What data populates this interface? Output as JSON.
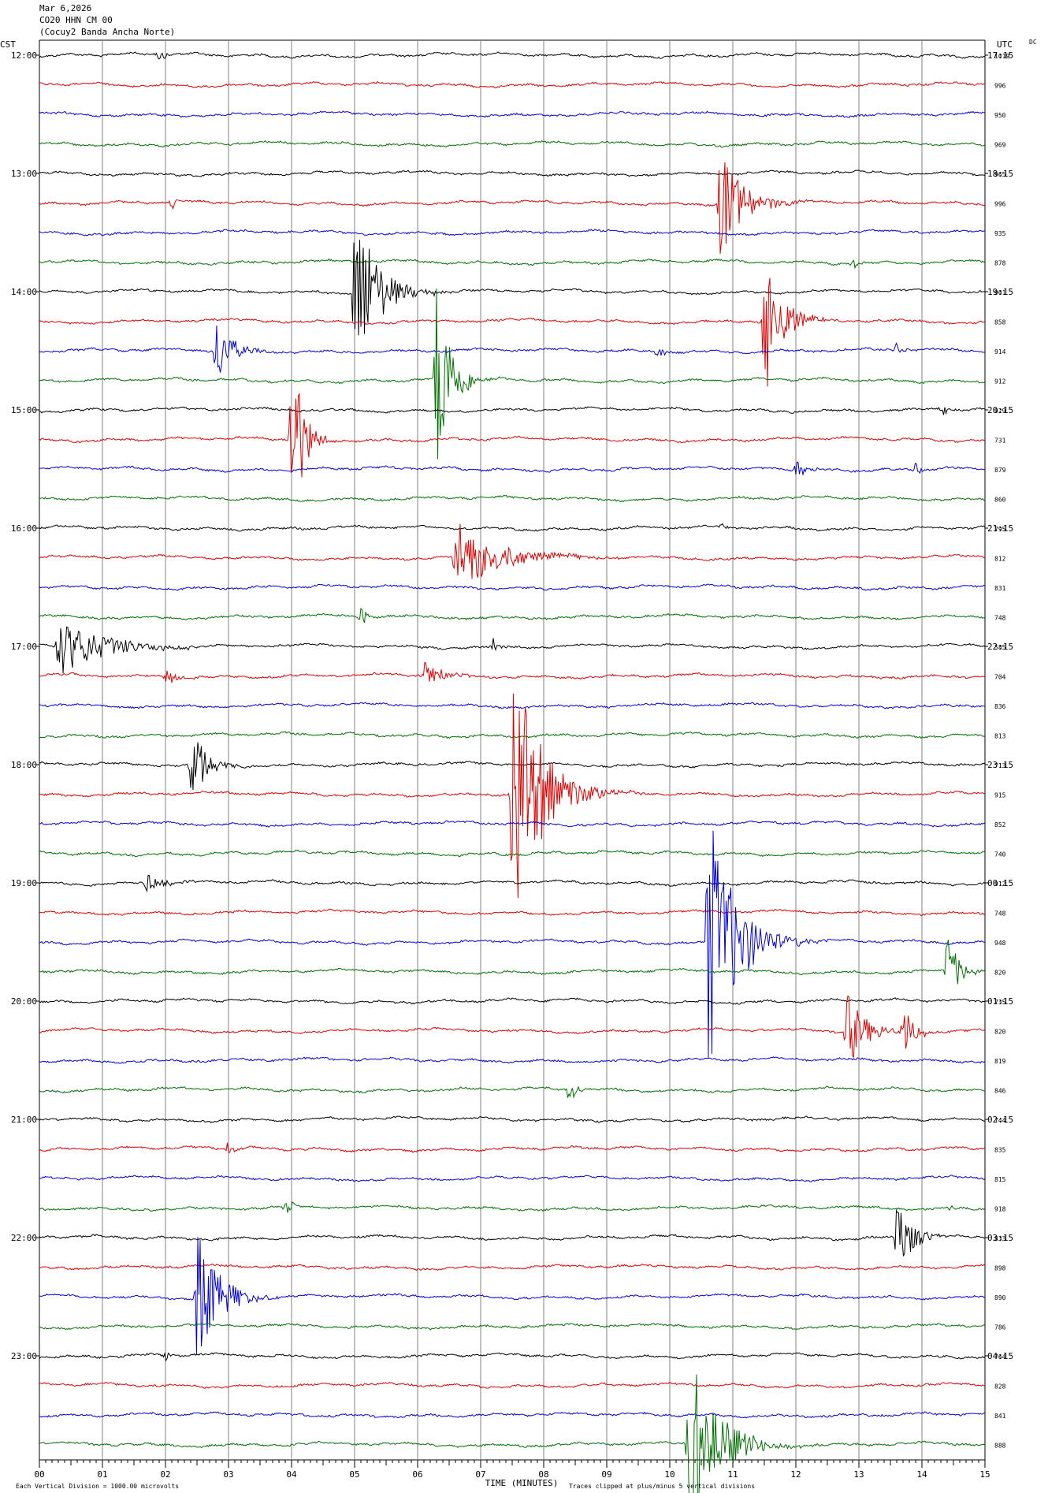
{
  "header": {
    "date": "Mar 6,2026",
    "station": "CO20 HHN CM 00",
    "site": "(Cocuy2 Banda Ancha Norte)"
  },
  "left_axis_label": "CST",
  "right_axis_label": "UTC",
  "dc_label": "DC",
  "footer": {
    "scale_note": "Each Vertical Division = 1000.00 microvolts",
    "xlabel": "TIME (MINUTES)",
    "clip_note": "Traces clipped at plus/minus 5 vertical divisions"
  },
  "colors": {
    "cycle": [
      "#000000",
      "#e00000",
      "#0000e0",
      "#007000"
    ],
    "grid": "#808080"
  },
  "chart_data": {
    "type": "line",
    "x_range": [
      0,
      15
    ],
    "x_ticks": [
      "00",
      "01",
      "02",
      "03",
      "04",
      "05",
      "06",
      "07",
      "08",
      "09",
      "10",
      "11",
      "12",
      "13",
      "14",
      "15"
    ],
    "cst_hour_labels": [
      "12:00",
      "13:00",
      "14:00",
      "15:00",
      "16:00",
      "17:00",
      "18:00",
      "19:00",
      "20:00",
      "21:00",
      "22:00",
      "23:00"
    ],
    "utc_hour_labels": [
      "17:15",
      "18:15",
      "19:15",
      "20:15",
      "21:15",
      "22:15",
      "23:15",
      "00:15",
      "01:15",
      "02:15",
      "03:15",
      "04:15"
    ],
    "dc_offsets": [
      "1019",
      "996",
      "950",
      "969",
      "965",
      "996",
      "935",
      "878",
      "901",
      "858",
      "914",
      "912",
      "929",
      "731",
      "879",
      "860",
      "795",
      "812",
      "831",
      "748",
      "585",
      "704",
      "836",
      "813",
      "713",
      "915",
      "852",
      "740",
      "912",
      "748",
      "948",
      "820",
      "735",
      "820",
      "819",
      "846",
      "744",
      "835",
      "815",
      "918",
      "833",
      "898",
      "890",
      "786",
      "764",
      "828",
      "841",
      "888"
    ],
    "events": [
      {
        "trace": 0,
        "minute": 1.9,
        "amp": 0.25,
        "dur": 0.3
      },
      {
        "trace": 5,
        "minute": 10.8,
        "amp": 2.0,
        "dur": 1.3
      },
      {
        "trace": 5,
        "minute": 2.1,
        "amp": 0.3,
        "dur": 0.2
      },
      {
        "trace": 7,
        "minute": 12.9,
        "amp": 0.3,
        "dur": 0.2
      },
      {
        "trace": 8,
        "minute": 5.0,
        "amp": 3.5,
        "dur": 1.2
      },
      {
        "trace": 9,
        "minute": 11.5,
        "amp": 3.0,
        "dur": 0.9
      },
      {
        "trace": 10,
        "minute": 2.8,
        "amp": 1.4,
        "dur": 0.8
      },
      {
        "trace": 10,
        "minute": 9.8,
        "amp": 0.3,
        "dur": 0.3
      },
      {
        "trace": 10,
        "minute": 13.6,
        "amp": 0.3,
        "dur": 0.3
      },
      {
        "trace": 11,
        "minute": 6.3,
        "amp": 4.0,
        "dur": 0.8
      },
      {
        "trace": 12,
        "minute": 14.3,
        "amp": 0.3,
        "dur": 0.3
      },
      {
        "trace": 13,
        "minute": 4.0,
        "amp": 4.0,
        "dur": 0.6
      },
      {
        "trace": 14,
        "minute": 12.0,
        "amp": 0.5,
        "dur": 0.5
      },
      {
        "trace": 14,
        "minute": 13.9,
        "amp": 0.3,
        "dur": 0.3
      },
      {
        "trace": 16,
        "minute": 10.8,
        "amp": 0.2,
        "dur": 0.3
      },
      {
        "trace": 17,
        "minute": 6.6,
        "amp": 1.4,
        "dur": 2.3
      },
      {
        "trace": 19,
        "minute": 5.1,
        "amp": 0.4,
        "dur": 0.3
      },
      {
        "trace": 20,
        "minute": 0.3,
        "amp": 1.1,
        "dur": 2.5
      },
      {
        "trace": 20,
        "minute": 7.2,
        "amp": 0.3,
        "dur": 0.3
      },
      {
        "trace": 21,
        "minute": 2.0,
        "amp": 0.4,
        "dur": 0.6
      },
      {
        "trace": 21,
        "minute": 6.1,
        "amp": 0.6,
        "dur": 0.9
      },
      {
        "trace": 24,
        "minute": 2.4,
        "amp": 1.6,
        "dur": 0.8
      },
      {
        "trace": 25,
        "minute": 7.5,
        "amp": 5.0,
        "dur": 1.6
      },
      {
        "trace": 28,
        "minute": 1.7,
        "amp": 0.4,
        "dur": 0.9
      },
      {
        "trace": 30,
        "minute": 10.6,
        "amp": 5.0,
        "dur": 1.5
      },
      {
        "trace": 31,
        "minute": 14.4,
        "amp": 1.5,
        "dur": 0.6
      },
      {
        "trace": 33,
        "minute": 12.8,
        "amp": 1.5,
        "dur": 1.0
      },
      {
        "trace": 33,
        "minute": 13.7,
        "amp": 1.0,
        "dur": 0.6
      },
      {
        "trace": 35,
        "minute": 8.4,
        "amp": 0.6,
        "dur": 0.4
      },
      {
        "trace": 37,
        "minute": 3.0,
        "amp": 0.5,
        "dur": 0.3
      },
      {
        "trace": 39,
        "minute": 3.9,
        "amp": 0.6,
        "dur": 0.3
      },
      {
        "trace": 39,
        "minute": 14.4,
        "amp": 0.3,
        "dur": 0.2
      },
      {
        "trace": 40,
        "minute": 13.6,
        "amp": 1.6,
        "dur": 0.8
      },
      {
        "trace": 42,
        "minute": 2.5,
        "amp": 2.5,
        "dur": 1.2
      },
      {
        "trace": 44,
        "minute": 2.0,
        "amp": 0.2,
        "dur": 0.3
      },
      {
        "trace": 47,
        "minute": 10.3,
        "amp": 3.5,
        "dur": 1.6
      }
    ]
  }
}
